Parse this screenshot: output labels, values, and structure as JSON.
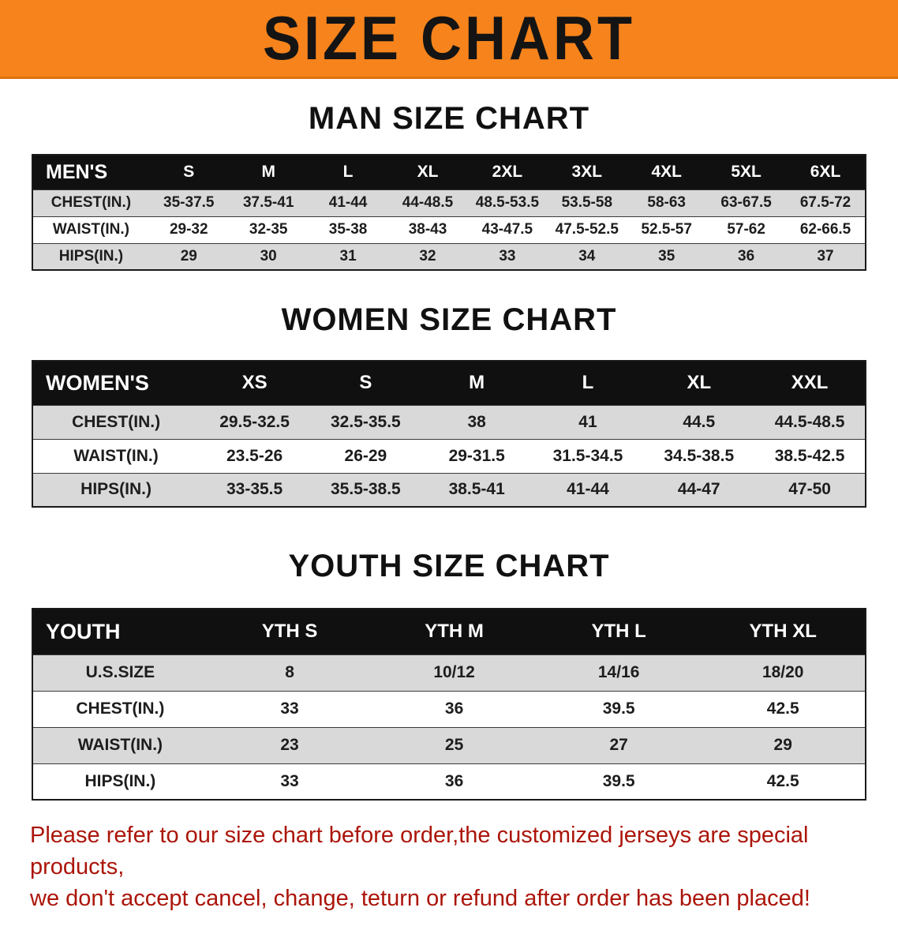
{
  "banner": {
    "title": "SIZE CHART"
  },
  "colors": {
    "banner_orange": "#F6831C",
    "header_black": "#101010",
    "stripe_gray": "#D9D9D9",
    "footer_red": "#AB150A"
  },
  "sections": [
    {
      "id": "men",
      "heading": "MAN SIZE CHART",
      "table": {
        "header": [
          "MEN'S",
          "S",
          "M",
          "L",
          "XL",
          "2XL",
          "3XL",
          "4XL",
          "5XL",
          "6XL"
        ],
        "rows": [
          [
            "CHEST(IN.)",
            "35-37.5",
            "37.5-41",
            "41-44",
            "44-48.5",
            "48.5-53.5",
            "53.5-58",
            "58-63",
            "63-67.5",
            "67.5-72"
          ],
          [
            "WAIST(IN.)",
            "29-32",
            "32-35",
            "35-38",
            "38-43",
            "43-47.5",
            "47.5-52.5",
            "52.5-57",
            "57-62",
            "62-66.5"
          ],
          [
            "HIPS(IN.)",
            "29",
            "30",
            "31",
            "32",
            "33",
            "34",
            "35",
            "36",
            "37"
          ]
        ]
      }
    },
    {
      "id": "women",
      "heading": "WOMEN SIZE CHART",
      "table": {
        "header": [
          "WOMEN'S",
          "XS",
          "S",
          "M",
          "L",
          "XL",
          "XXL"
        ],
        "rows": [
          [
            "CHEST(IN.)",
            "29.5-32.5",
            "32.5-35.5",
            "38",
            "41",
            "44.5",
            "44.5-48.5"
          ],
          [
            "WAIST(IN.)",
            "23.5-26",
            "26-29",
            "29-31.5",
            "31.5-34.5",
            "34.5-38.5",
            "38.5-42.5"
          ],
          [
            "HIPS(IN.)",
            "33-35.5",
            "35.5-38.5",
            "38.5-41",
            "41-44",
            "44-47",
            "47-50"
          ]
        ]
      }
    },
    {
      "id": "youth",
      "heading": "YOUTH SIZE CHART",
      "table": {
        "header": [
          "YOUTH",
          "YTH S",
          "YTH M",
          "YTH L",
          "YTH XL"
        ],
        "rows": [
          [
            "U.S.SIZE",
            "8",
            "10/12",
            "14/16",
            "18/20"
          ],
          [
            "CHEST(IN.)",
            "33",
            "36",
            "39.5",
            "42.5"
          ],
          [
            "WAIST(IN.)",
            "23",
            "25",
            "27",
            "29"
          ],
          [
            "HIPS(IN.)",
            "33",
            "36",
            "39.5",
            "42.5"
          ]
        ]
      }
    }
  ],
  "footer": {
    "line1": "Please refer to our size chart before order,the customized jerseys are special products,",
    "line2": "we don't accept cancel, change, teturn or refund after order has been placed!"
  }
}
